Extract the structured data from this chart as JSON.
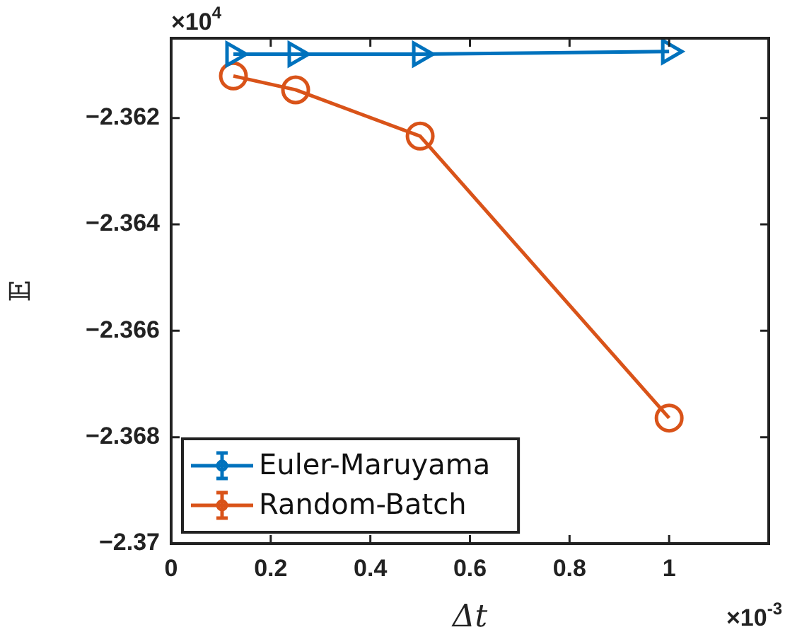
{
  "chart_data": {
    "type": "line",
    "xlabel": "Δt",
    "ylabel": "𝔼",
    "x": [
      0.125,
      0.25,
      0.5,
      1
    ],
    "series": [
      {
        "name": "Euler-Maruyama",
        "color": "#0072bd",
        "marker": "triangle",
        "values": [
          -2.3608,
          -2.3608,
          -2.3608,
          -2.36075
        ]
      },
      {
        "name": "Random-Batch",
        "color": "#d95319",
        "marker": "circle",
        "values": [
          -2.36121,
          -2.36147,
          -2.36234,
          -2.36764
        ]
      }
    ],
    "xlim": [
      0,
      1.2
    ],
    "xticks": [
      0,
      0.2,
      0.4,
      0.6,
      0.8,
      1,
      {
        "value": 1.2,
        "label": null
      }
    ],
    "ylim": [
      -2.37,
      -2.3605
    ],
    "yticks": [
      -2.37,
      -2.368,
      -2.366,
      -2.364,
      -2.362
    ],
    "grid": false,
    "legend": "bottom left",
    "line_style": "solid",
    "annotations": [
      "×10$^{4}$",
      "×10$^{-3}$"
    ]
  }
}
